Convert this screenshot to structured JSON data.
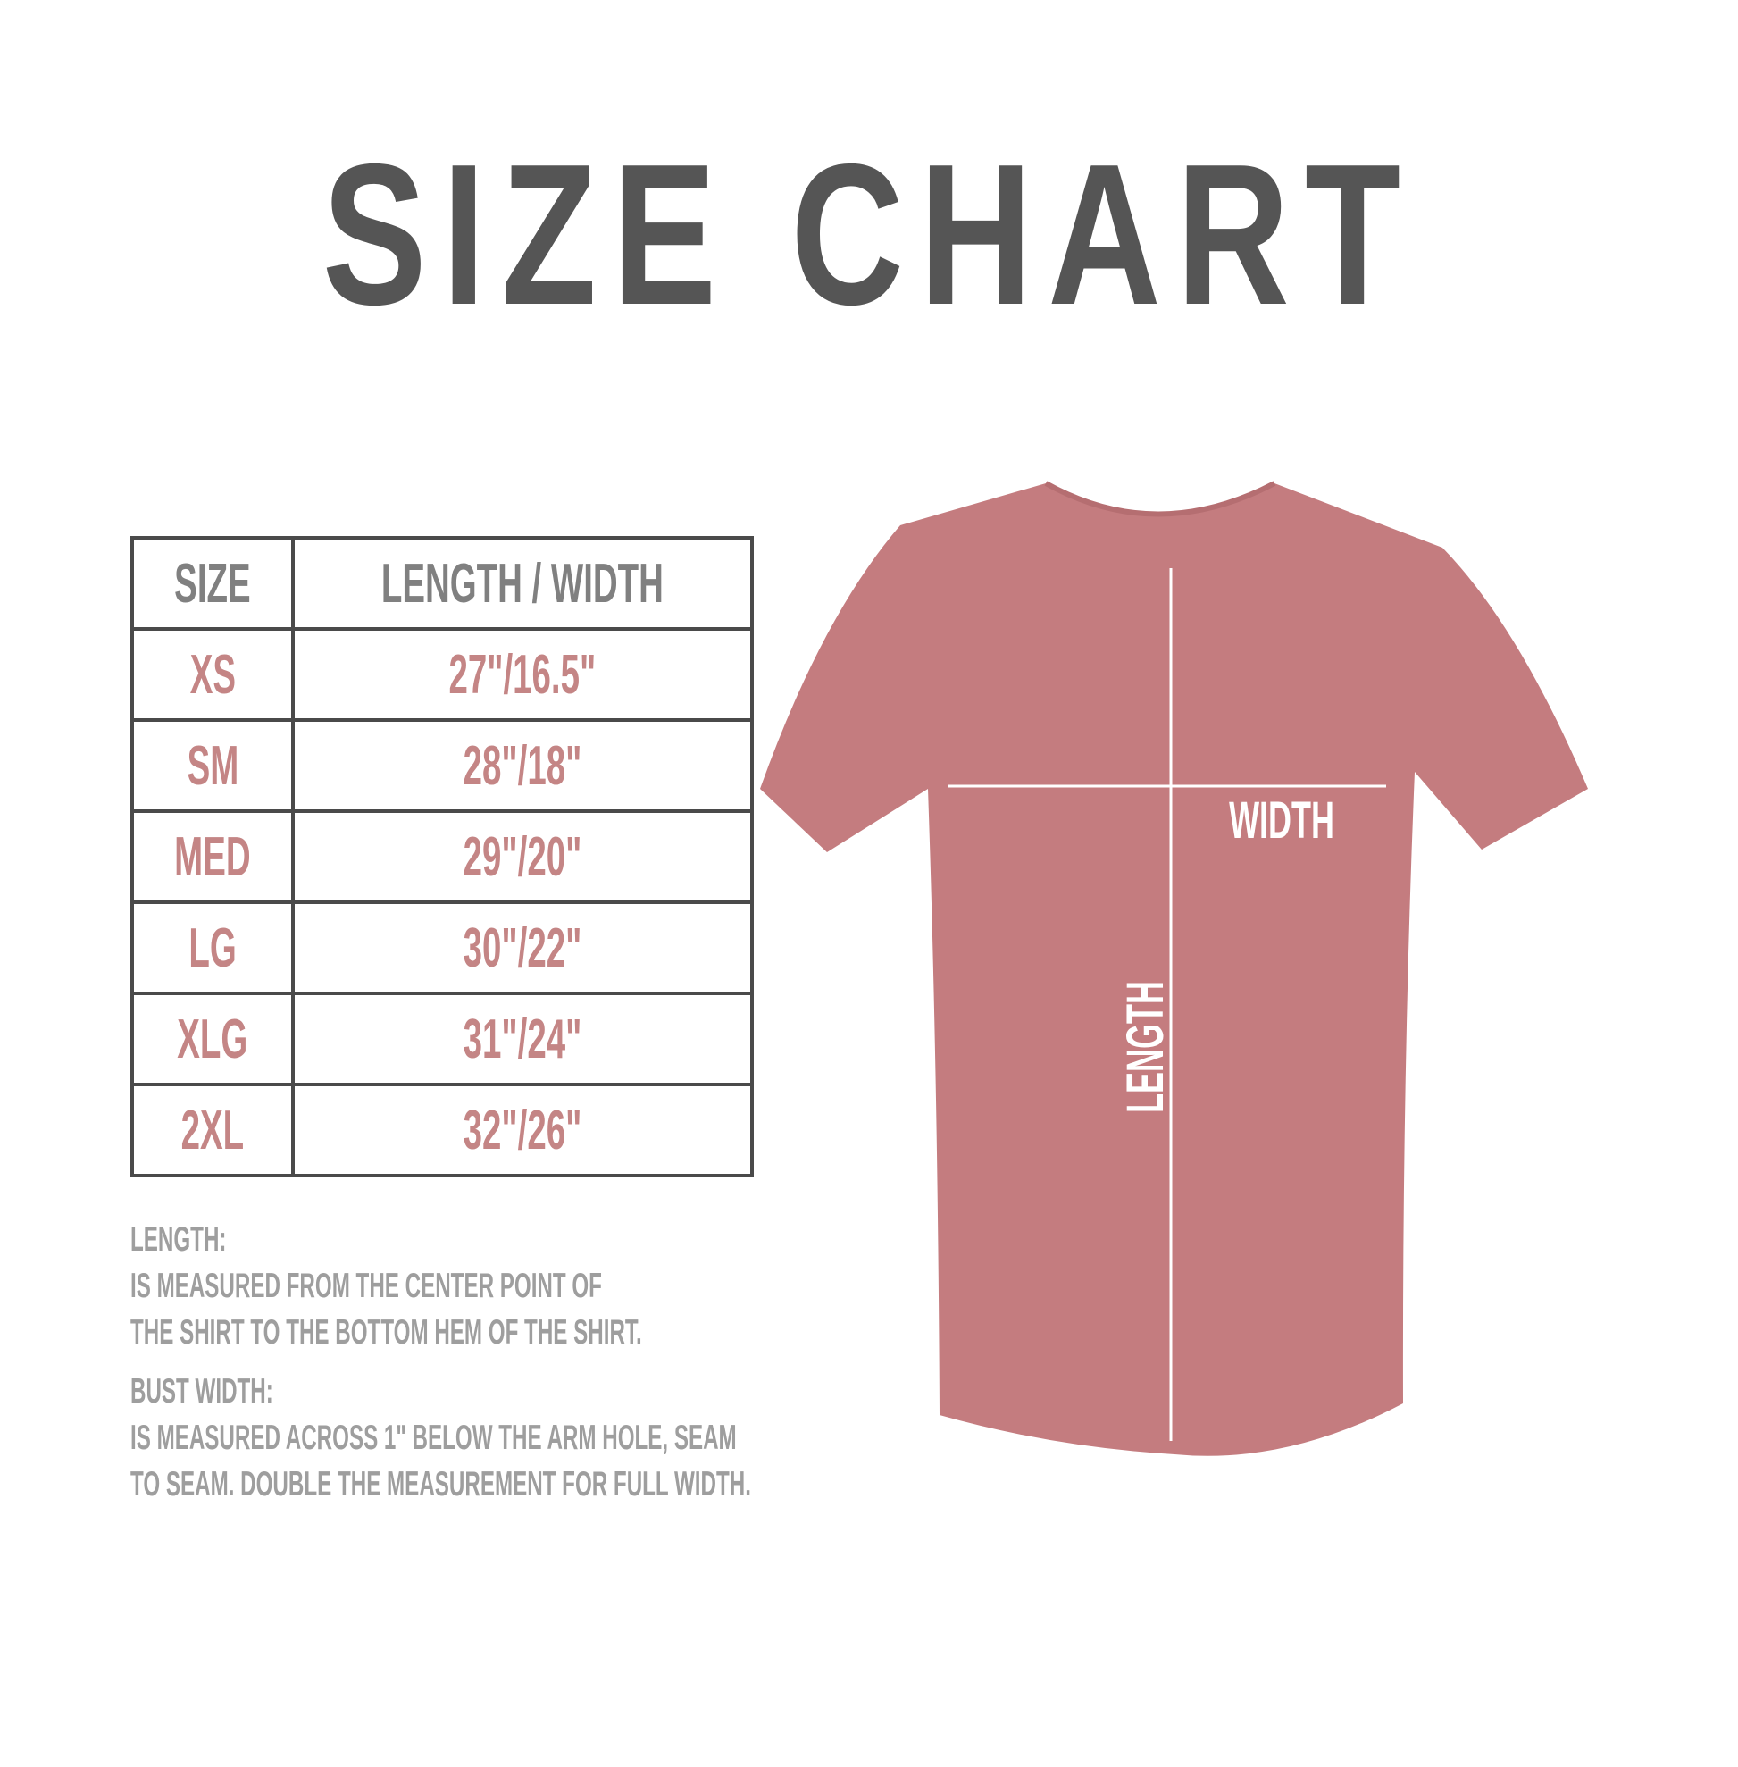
{
  "title": "SIZE CHART",
  "table": {
    "headers": [
      "SIZE",
      "LENGTH / WIDTH"
    ],
    "rows": [
      {
        "size": "XS",
        "measure": "27\"/16.5\""
      },
      {
        "size": "SM",
        "measure": "28\"/18\""
      },
      {
        "size": "MED",
        "measure": "29\"/20\""
      },
      {
        "size": "LG",
        "measure": "30\"/22\""
      },
      {
        "size": "XLG",
        "measure": "31\"/24\""
      },
      {
        "size": "2XL",
        "measure": "32\"/26\""
      }
    ]
  },
  "notes": {
    "length_label": "LENGTH:",
    "length_line1": "IS MEASURED FROM THE CENTER POINT OF",
    "length_line2": "THE SHIRT TO THE BOTTOM HEM OF THE SHIRT.",
    "width_label": "BUST WIDTH:",
    "width_line1": "IS MEASURED ACROSS  1\" BELOW THE ARM HOLE, SEAM",
    "width_line2": "TO SEAM. DOUBLE THE MEASUREMENT FOR FULL WIDTH."
  },
  "shirt": {
    "color": "#c47c7f",
    "width_label": "WIDTH",
    "length_label": "LENGTH"
  }
}
